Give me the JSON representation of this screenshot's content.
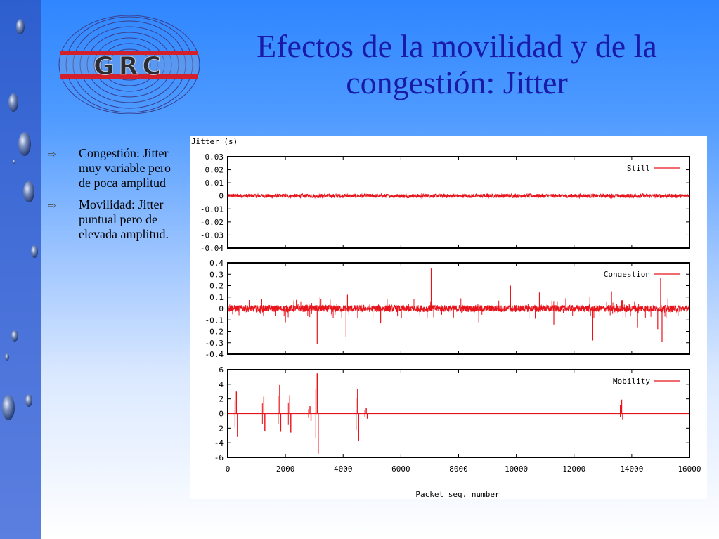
{
  "slide": {
    "title": "Efectos de la movilidad y de la congestión: Jitter",
    "logo_text": "GRC",
    "bullets": [
      {
        "icon": "arrow-right-icon",
        "text": "Congestión: Jitter muy variable pero de poca amplitud"
      },
      {
        "icon": "arrow-right-icon",
        "text": "Movilidad: Jitter puntual pero de elevada amplitud."
      }
    ]
  },
  "colors": {
    "title": "#1a1aa8",
    "series": "#e8141c",
    "left_bar": "#3a63d2"
  },
  "chart_data": [
    {
      "type": "line",
      "ylabel": "Jitter (s)",
      "xlabel": "",
      "xlim": [
        0,
        16000
      ],
      "ylim": [
        -0.04,
        0.03
      ],
      "yticks": [
        "0.03",
        "0.02",
        "0.01",
        "0",
        "-0.01",
        "-0.02",
        "-0.03",
        "-0.04"
      ],
      "legend_position": "top-right",
      "series": [
        {
          "name": "Still",
          "pattern": "noise",
          "base": 0.0,
          "amplitude": 0.0015,
          "spikes": []
        }
      ]
    },
    {
      "type": "line",
      "xlabel": "",
      "xlim": [
        0,
        16000
      ],
      "ylim": [
        -0.4,
        0.4
      ],
      "yticks": [
        "0.4",
        "0.3",
        "0.2",
        "0.1",
        "0",
        "-0.1",
        "-0.2",
        "-0.3",
        "-0.4"
      ],
      "legend_position": "top-right",
      "series": [
        {
          "name": "Congestion",
          "pattern": "noise",
          "base": 0.0,
          "amplitude": 0.03,
          "spikes": [
            {
              "x": 3100,
              "y": -0.31
            },
            {
              "x": 3200,
              "y": 0.1
            },
            {
              "x": 4150,
              "y": 0.12
            },
            {
              "x": 4100,
              "y": -0.25
            },
            {
              "x": 7050,
              "y": 0.35
            },
            {
              "x": 9800,
              "y": 0.2
            },
            {
              "x": 10800,
              "y": 0.14
            },
            {
              "x": 12650,
              "y": -0.28
            },
            {
              "x": 12550,
              "y": 0.1
            },
            {
              "x": 13300,
              "y": 0.15
            },
            {
              "x": 15000,
              "y": 0.27
            },
            {
              "x": 15050,
              "y": -0.29
            },
            {
              "x": 14900,
              "y": -0.18
            },
            {
              "x": 11300,
              "y": -0.14
            },
            {
              "x": 2000,
              "y": -0.12
            },
            {
              "x": 5300,
              "y": -0.13
            },
            {
              "x": 8700,
              "y": -0.12
            },
            {
              "x": 14200,
              "y": -0.17
            }
          ]
        }
      ]
    },
    {
      "type": "line",
      "xlabel": "Packet seq. number",
      "xlim": [
        0,
        16000
      ],
      "ylim": [
        -6,
        6
      ],
      "yticks": [
        "6",
        "4",
        "2",
        "0",
        "-2",
        "-4",
        "-6"
      ],
      "xticks": [
        "0",
        "2000",
        "4000",
        "6000",
        "8000",
        "10000",
        "12000",
        "14000",
        "16000"
      ],
      "legend_position": "top-right",
      "series": [
        {
          "name": "Mobility",
          "pattern": "flat",
          "base": 0.0,
          "amplitude": 0,
          "bursts": [
            {
              "x": 300,
              "up": 3.0,
              "down": -3.2
            },
            {
              "x": 1250,
              "up": 2.3,
              "down": -2.4
            },
            {
              "x": 1800,
              "up": 3.9,
              "down": -2.5
            },
            {
              "x": 2150,
              "up": 2.5,
              "down": -2.6
            },
            {
              "x": 2850,
              "up": 1.0,
              "down": -1.0
            },
            {
              "x": 3100,
              "up": 5.5,
              "down": -5.5
            },
            {
              "x": 4500,
              "up": 3.4,
              "down": -3.8
            },
            {
              "x": 4800,
              "up": 0.8,
              "down": -0.7
            },
            {
              "x": 13650,
              "up": 1.9,
              "down": -0.8
            }
          ]
        }
      ]
    }
  ]
}
